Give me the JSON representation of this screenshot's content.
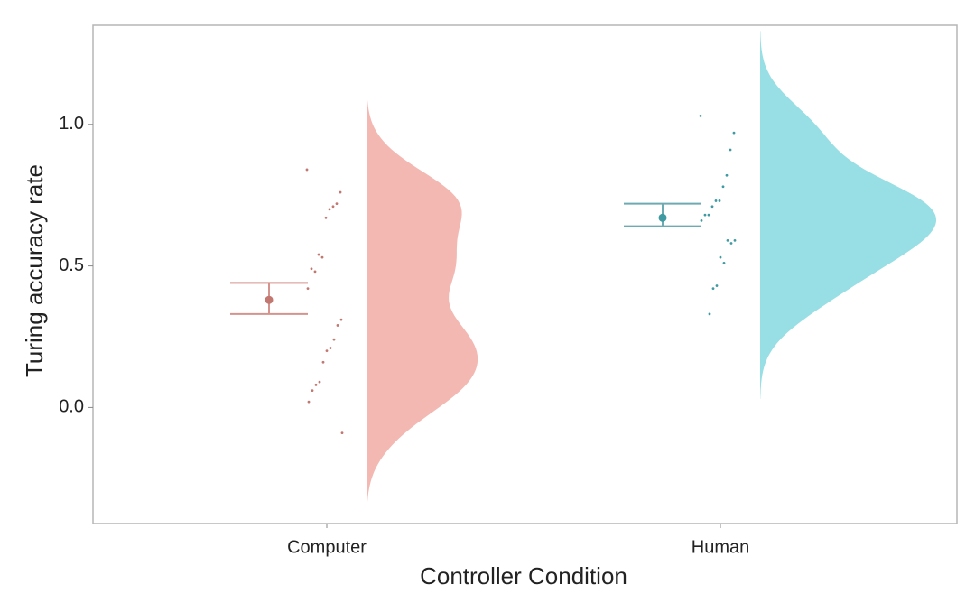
{
  "chart_data": {
    "type": "raincloud",
    "x_label": "Controller Condition",
    "y_label": "Turing accuracy rate",
    "ylim": [
      -0.41,
      1.35
    ],
    "yticks": [
      {
        "value": 0,
        "label": "0.0"
      },
      0.5,
      {
        "value": 1,
        "label": "1.0"
      }
    ],
    "groups": [
      {
        "category": "Computer",
        "fill_color": "#f3b8b2",
        "point_color": "#c27770",
        "bar_color": "#d4938d",
        "values": [
          0.84,
          0.76,
          0.72,
          0.71,
          0.7,
          0.67,
          0.53,
          0.54,
          0.48,
          0.49,
          0.42,
          0.31,
          0.29,
          0.24,
          0.21,
          0.2,
          0.16,
          0.09,
          0.08,
          0.06,
          0.02,
          -0.09
        ],
        "mean": 0.38,
        "ci": [
          0.33,
          0.44
        ]
      },
      {
        "category": "Human",
        "fill_color": "#97dfe4",
        "point_color": "#3f9aa1",
        "bar_color": "#6eaab1",
        "values": [
          1.03,
          0.97,
          0.91,
          0.82,
          0.78,
          0.73,
          0.73,
          0.71,
          0.68,
          0.68,
          0.66,
          0.59,
          0.58,
          0.59,
          0.51,
          0.53,
          0.43,
          0.42,
          0.33
        ],
        "mean": 0.67,
        "ci": [
          0.64,
          0.72
        ]
      }
    ]
  }
}
